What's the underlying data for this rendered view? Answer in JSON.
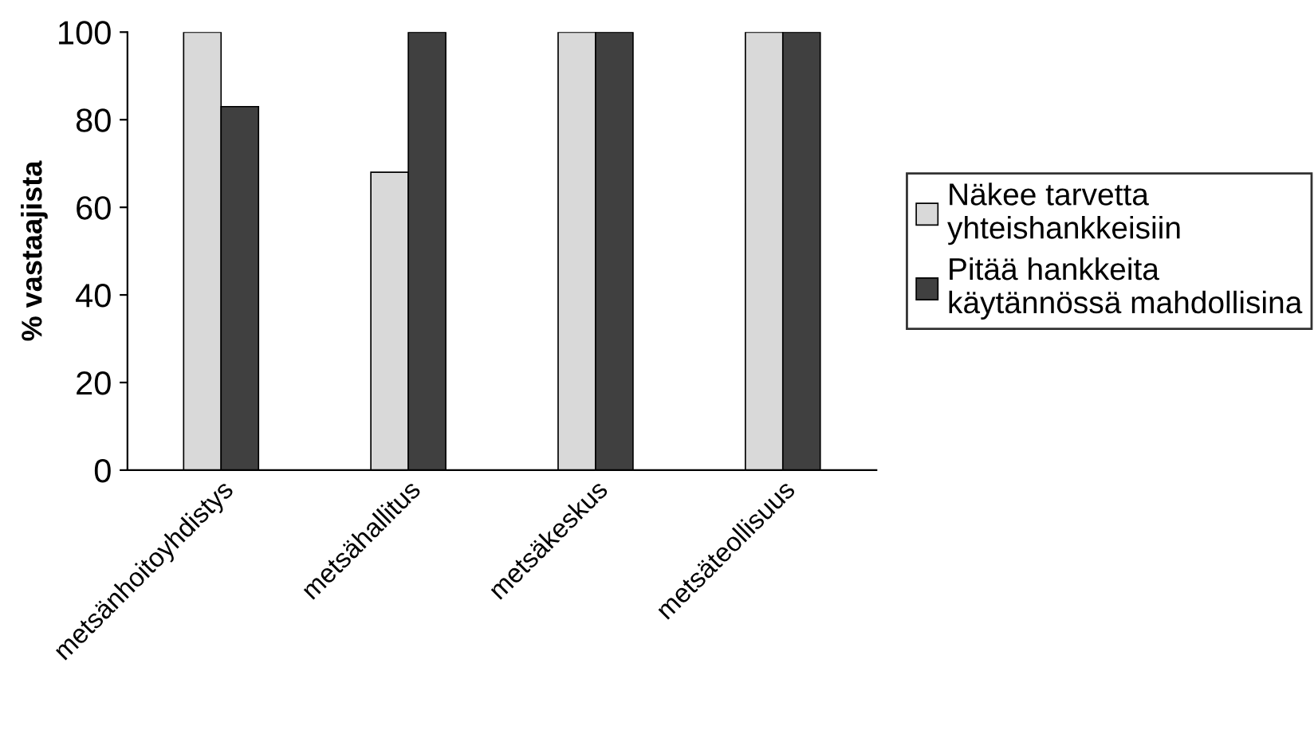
{
  "chart_data": {
    "type": "bar",
    "ylabel": "% vastaajista",
    "categories": [
      "metsänhoitoyhdistys",
      "metsähallitus",
      "metsäkeskus",
      "metsäteollisuus"
    ],
    "series": [
      {
        "name": "Näkee tarvetta\nyhteishankkeisiin",
        "color": "#d9d9d9",
        "values": [
          100,
          68,
          100,
          100
        ]
      },
      {
        "name": "Pitää hankkeita\nkäytännössä mahdollisina",
        "color": "#404040",
        "values": [
          83,
          100,
          100,
          100
        ]
      }
    ],
    "ylim": [
      0,
      100
    ],
    "yticks": [
      0,
      20,
      40,
      60,
      80,
      100
    ],
    "grid": false,
    "legend": "right"
  }
}
